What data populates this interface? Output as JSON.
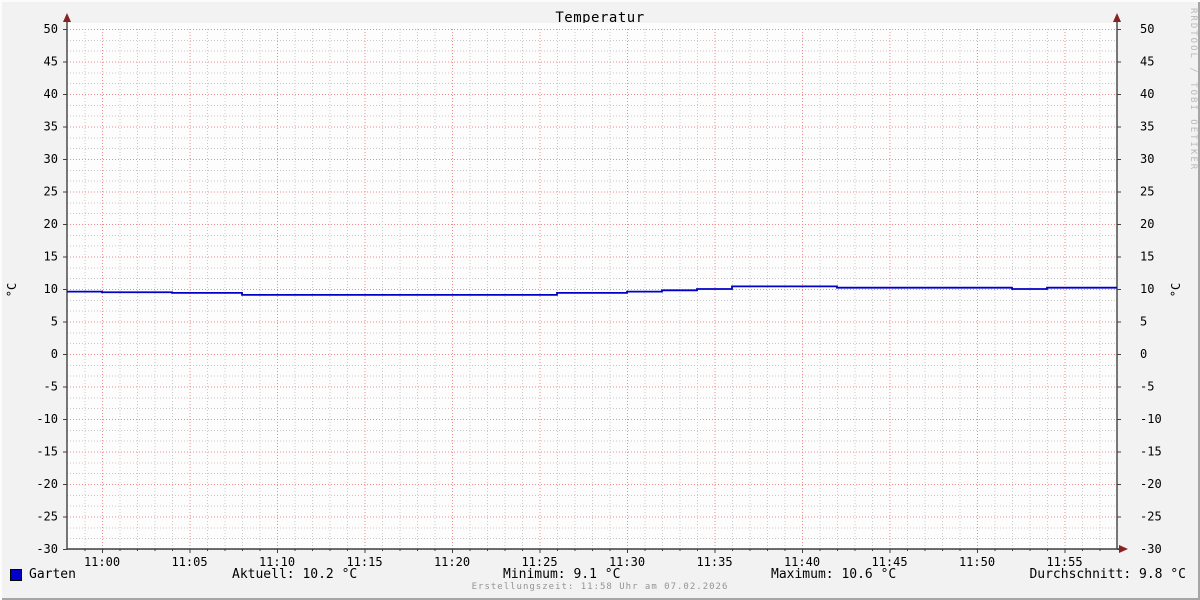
{
  "title": "Temperatur",
  "watermark": "RRDTOOL / TOBI OETIKER",
  "footnote": "Erstellungszeit: 11:58 Uhr am 07.02.2026",
  "legend": {
    "label": "Garten",
    "color": "#0000C8"
  },
  "stats": {
    "aktuell": "Aktuell: 10.2 °C",
    "minimum": "Minimum: 9.1 °C",
    "maximum": "Maximum: 10.6 °C",
    "durchschnitt": "Durchschnitt: 9.8 °C"
  },
  "chart_data": {
    "type": "line",
    "title": "Temperatur",
    "ylabel": "°C",
    "ylim": [
      -30,
      50
    ],
    "y_tick_step": 5,
    "y_minor_divisions_per_major": 3,
    "x_start": "10:58",
    "x_end": "11:58",
    "x_major_step_min": 5,
    "x_minor_step_min": 1,
    "x_ticks": [
      "11:00",
      "11:05",
      "11:10",
      "11:15",
      "11:20",
      "11:25",
      "11:30",
      "11:35",
      "11:40",
      "11:45",
      "11:50",
      "11:55"
    ],
    "y_ticks": [
      50,
      45,
      40,
      35,
      30,
      25,
      20,
      15,
      10,
      5,
      0,
      -5,
      -10,
      -15,
      -20,
      -25,
      -30
    ],
    "grid_on": true,
    "legend_position": "bottom-left",
    "colors": {
      "major_grid": "#EE8A8A",
      "minor_grid": "#C9C9C9",
      "axis": "#404040",
      "arrow": "#8B2020",
      "plot_background": "#fdfdfd",
      "outer_background": "#f2f2f2"
    },
    "series": [
      {
        "name": "Garten",
        "color": "#0000C8",
        "unit": "°C",
        "points": [
          [
            "10:58",
            9.6
          ],
          [
            "11:00",
            9.5
          ],
          [
            "11:04",
            9.4
          ],
          [
            "11:08",
            9.1
          ],
          [
            "11:26",
            9.4
          ],
          [
            "11:30",
            9.6
          ],
          [
            "11:32",
            9.8
          ],
          [
            "11:34",
            10.0
          ],
          [
            "11:36",
            10.4
          ],
          [
            "11:42",
            10.2
          ],
          [
            "11:52",
            10.0
          ],
          [
            "11:54",
            10.2
          ],
          [
            "11:58",
            10.2
          ]
        ],
        "stats": {
          "aktuell": 10.2,
          "minimum": 9.1,
          "maximum": 10.6,
          "durchschnitt": 9.8
        }
      }
    ]
  }
}
